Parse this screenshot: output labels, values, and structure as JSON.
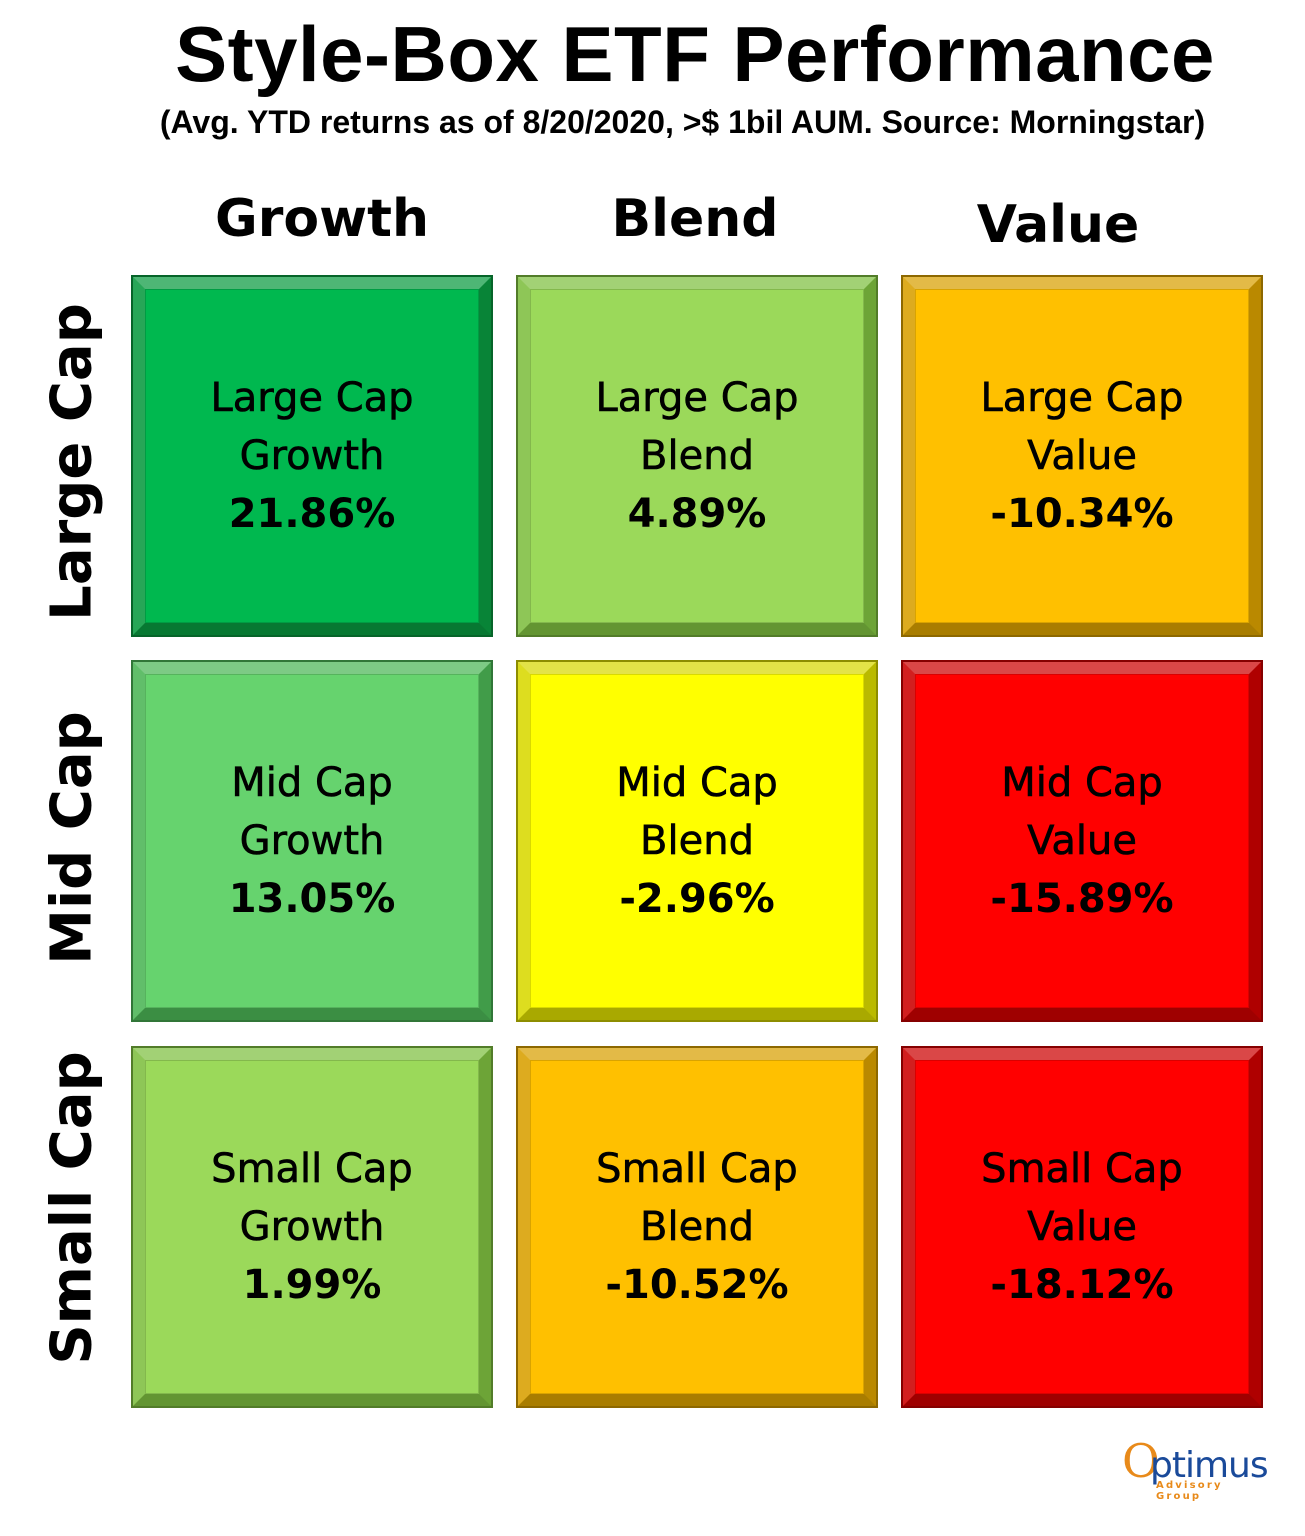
{
  "title": "Style-Box ETF Performance",
  "subtitle": "(Avg. YTD returns as of 8/20/2020, >$ 1bil AUM. Source: Morningstar)",
  "columns": [
    "Growth",
    "Blend",
    "Value"
  ],
  "rows": [
    "Large Cap",
    "Mid Cap",
    "Small Cap"
  ],
  "cells": [
    {
      "line1": "Large Cap",
      "line2": "Growth",
      "value": "21.86%",
      "color": "#00b84f",
      "edge": "#0a9a40"
    },
    {
      "line1": "Large Cap",
      "line2": "Blend",
      "value": "4.89%",
      "color": "#9bd95a",
      "edge": "#7fbf40"
    },
    {
      "line1": "Large Cap",
      "line2": "Value",
      "value": "-10.34%",
      "color": "#ffc000",
      "edge": "#d9a000"
    },
    {
      "line1": "Mid Cap",
      "line2": "Growth",
      "value": "13.05%",
      "color": "#66d36e",
      "edge": "#4cb656"
    },
    {
      "line1": "Mid Cap",
      "line2": "Blend",
      "value": "-2.96%",
      "color": "#ffff00",
      "edge": "#d9d900"
    },
    {
      "line1": "Mid Cap",
      "line2": "Value",
      "value": "-15.89%",
      "color": "#ff0000",
      "edge": "#cc0000"
    },
    {
      "line1": "Small Cap",
      "line2": "Growth",
      "value": "1.99%",
      "color": "#9bd95a",
      "edge": "#7fbf40"
    },
    {
      "line1": "Small Cap",
      "line2": "Blend",
      "value": "-10.52%",
      "color": "#ffc000",
      "edge": "#d9a000"
    },
    {
      "line1": "Small Cap",
      "line2": "Value",
      "value": "-18.12%",
      "color": "#ff0000",
      "edge": "#cc0000"
    }
  ],
  "logo": {
    "o": "O",
    "rest": "ptimus",
    "sub": "Advisory Group"
  },
  "chart_data": {
    "type": "heatmap",
    "title": "Style-Box ETF Performance",
    "subtitle": "(Avg. YTD returns as of 8/20/2020, >$ 1bil AUM. Source: Morningstar)",
    "x_categories": [
      "Growth",
      "Blend",
      "Value"
    ],
    "y_categories": [
      "Large Cap",
      "Mid Cap",
      "Small Cap"
    ],
    "values": [
      [
        21.86,
        4.89,
        -10.34
      ],
      [
        13.05,
        -2.96,
        -15.89
      ],
      [
        1.99,
        -10.52,
        -18.12
      ]
    ],
    "unit": "%"
  }
}
